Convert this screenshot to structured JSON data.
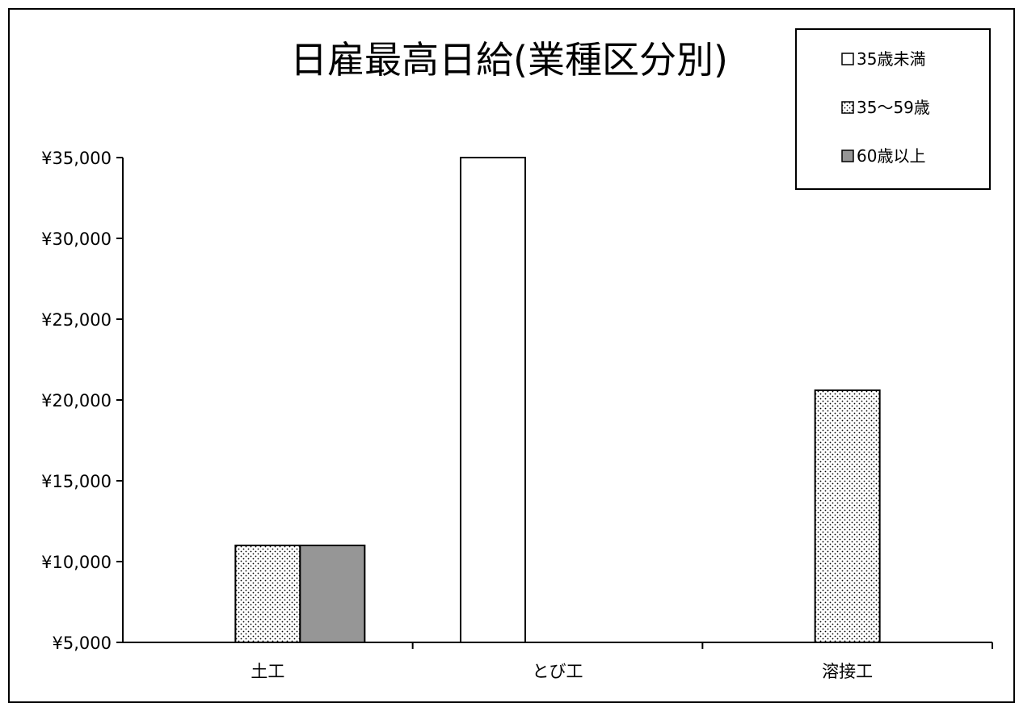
{
  "chart_data": {
    "type": "bar",
    "title": "日雇最高日給(業種区分別)",
    "xlabel": "",
    "ylabel": "",
    "ylim": [
      5000,
      35000
    ],
    "yticks": [
      5000,
      10000,
      15000,
      20000,
      25000,
      30000,
      35000
    ],
    "ytick_labels": [
      "¥5,000",
      "¥10,000",
      "¥15,000",
      "¥20,000",
      "¥25,000",
      "¥30,000",
      "¥35,000"
    ],
    "categories": [
      "土工",
      "とび工",
      "溶接工"
    ],
    "series": [
      {
        "name": "35歳未満",
        "values": [
          null,
          35000,
          null
        ],
        "fill": "white"
      },
      {
        "name": "35～59歳",
        "values": [
          11000,
          null,
          20600
        ],
        "fill": "dotted"
      },
      {
        "name": "60歳以上",
        "values": [
          11000,
          null,
          null
        ],
        "fill": "gray"
      }
    ],
    "legend_position": "top-right",
    "grid": false,
    "colors": {
      "under35": "#ffffff",
      "mid": "#ffffff",
      "mid_dots": "#000000",
      "over60": "#969696",
      "outline": "#000000"
    }
  }
}
